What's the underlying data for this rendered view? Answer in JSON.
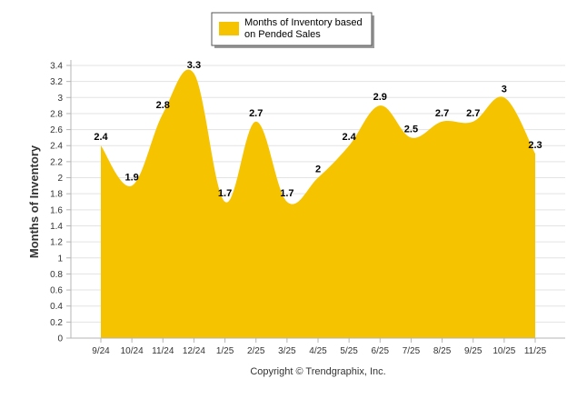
{
  "chart_data": {
    "type": "area",
    "categories": [
      "9/24",
      "10/24",
      "11/24",
      "12/24",
      "1/25",
      "2/25",
      "3/25",
      "4/25",
      "5/25",
      "6/25",
      "7/25",
      "8/25",
      "9/25",
      "10/25",
      "11/25"
    ],
    "series": [
      {
        "name": "Months of Inventory based on Pended Sales",
        "values": [
          2.4,
          1.9,
          2.8,
          3.3,
          1.7,
          2.7,
          1.7,
          2,
          2.4,
          2.9,
          2.5,
          2.7,
          2.7,
          3,
          2.3
        ],
        "color": "#F5C300"
      }
    ],
    "title": "",
    "xlabel": "",
    "ylabel": "Months of Inventory",
    "ylim": [
      0,
      3.4
    ],
    "y_ticks": [
      "0",
      "0.2",
      "0.4",
      "0.6",
      "0.8",
      "1",
      "1.2",
      "1.4",
      "1.6",
      "1.8",
      "2",
      "2.2",
      "2.4",
      "2.6",
      "2.8",
      "3",
      "3.2",
      "3.4"
    ],
    "grid": true,
    "legend_position": "top-center",
    "legend_lines": [
      "Months of Inventory based",
      "on Pended Sales"
    ],
    "data_labels": [
      "2.4",
      "1.9",
      "2.8",
      "3.3",
      "1.7",
      "2.7",
      "1.7",
      "2",
      "2.4",
      "2.9",
      "2.5",
      "2.7",
      "2.7",
      "3",
      "2.3"
    ],
    "footer": "Copyright © Trendgraphix, Inc."
  },
  "colors": {
    "area_fill": "#F5C300",
    "grid": "#E3E3E3",
    "axis": "#B5B5B5",
    "text": "#333333",
    "label_text": "#000000"
  }
}
